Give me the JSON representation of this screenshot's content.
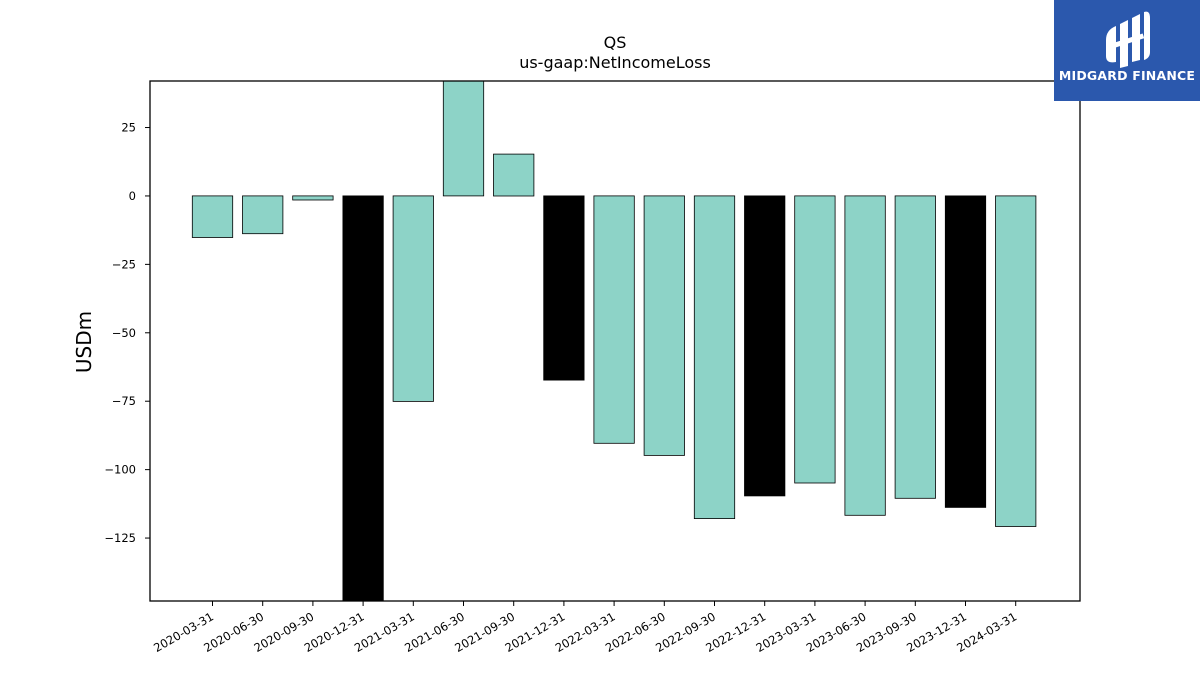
{
  "chart_data": {
    "type": "bar",
    "title": "QS",
    "subtitle": "us-gaap:NetIncomeLoss",
    "xlabel": "",
    "ylabel": "USDm",
    "ylim": [
      -148,
      42
    ],
    "yticks": [
      25,
      0,
      -25,
      -50,
      -75,
      -100,
      -125
    ],
    "grid": false,
    "categories": [
      "2020-03-31",
      "2020-06-30",
      "2020-09-30",
      "2020-12-31",
      "2021-03-31",
      "2021-06-30",
      "2021-09-30",
      "2021-12-31",
      "2022-03-31",
      "2022-06-30",
      "2022-09-30",
      "2022-12-31",
      "2023-03-31",
      "2023-06-30",
      "2023-09-30",
      "2023-12-31",
      "2024-03-31"
    ],
    "values": [
      -15.2,
      -13.8,
      -1.5,
      -148,
      -75.1,
      42,
      15.3,
      -67.3,
      -90.4,
      -94.8,
      -117.9,
      -109.6,
      -104.9,
      -116.7,
      -110.5,
      -113.8,
      -120.8
    ],
    "bar_colors": [
      "#8dd3c7",
      "#8dd3c7",
      "#8dd3c7",
      "#000000",
      "#8dd3c7",
      "#8dd3c7",
      "#8dd3c7",
      "#000000",
      "#8dd3c7",
      "#8dd3c7",
      "#8dd3c7",
      "#000000",
      "#8dd3c7",
      "#8dd3c7",
      "#8dd3c7",
      "#000000",
      "#8dd3c7"
    ]
  },
  "logo": {
    "text": "MIDGARD FINANCE",
    "background": "#2b58ad",
    "icon": "midgard-logo-icon"
  }
}
